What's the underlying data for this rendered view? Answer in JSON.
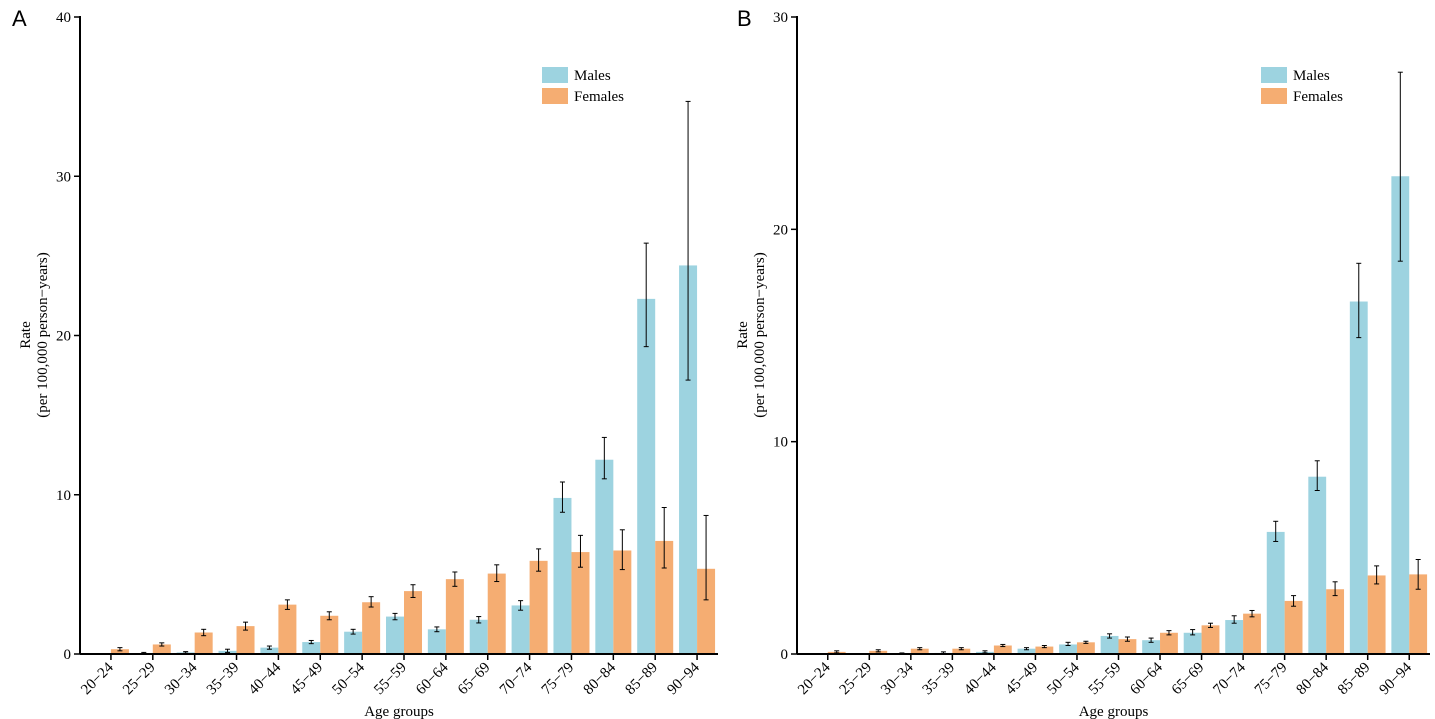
{
  "chart_data": [
    {
      "type": "bar",
      "panel_label": "A",
      "xlabel": "Age groups",
      "ylabel_line1": "Rate",
      "ylabel_line2": "(per 100,000 person−years)",
      "ylim": [
        0,
        40
      ],
      "yticks": [
        0,
        10,
        20,
        30,
        40
      ],
      "categories": [
        "20−24",
        "25−29",
        "30−34",
        "35−39",
        "40−44",
        "45−49",
        "50−54",
        "55−59",
        "60−64",
        "65−69",
        "70−74",
        "75−79",
        "80−84",
        "85−89",
        "90−94"
      ],
      "legend_position": "top-right",
      "series": [
        {
          "name": "Males",
          "color": "#9dd3e0",
          "values": [
            0.0,
            0.05,
            0.1,
            0.2,
            0.4,
            0.75,
            1.4,
            2.35,
            1.55,
            2.15,
            3.05,
            9.8,
            12.2,
            22.3,
            24.4
          ],
          "err_low": [
            0.0,
            0.0,
            0.05,
            0.1,
            0.3,
            0.65,
            1.25,
            2.15,
            1.4,
            1.95,
            2.75,
            8.9,
            11.0,
            19.3,
            17.2
          ],
          "err_high": [
            0.0,
            0.1,
            0.15,
            0.3,
            0.5,
            0.85,
            1.55,
            2.55,
            1.7,
            2.35,
            3.35,
            10.8,
            13.6,
            25.8,
            34.7
          ]
        },
        {
          "name": "Females",
          "color": "#f5ad72",
          "values": [
            0.3,
            0.6,
            1.35,
            1.75,
            3.1,
            2.4,
            3.25,
            3.95,
            4.7,
            5.05,
            5.85,
            6.4,
            6.5,
            7.1,
            5.35
          ],
          "err_low": [
            0.2,
            0.5,
            1.15,
            1.5,
            2.8,
            2.15,
            2.95,
            3.55,
            4.25,
            4.55,
            5.2,
            5.45,
            5.3,
            5.4,
            3.4
          ],
          "err_high": [
            0.4,
            0.7,
            1.55,
            2.0,
            3.4,
            2.65,
            3.6,
            4.35,
            5.15,
            5.6,
            6.6,
            7.45,
            7.8,
            9.2,
            8.7
          ]
        }
      ]
    },
    {
      "type": "bar",
      "panel_label": "B",
      "xlabel": "Age groups",
      "ylabel_line1": "Rate",
      "ylabel_line2": "(per 100,000 person−years)",
      "ylim": [
        0,
        30
      ],
      "yticks": [
        0,
        10,
        20,
        30
      ],
      "categories": [
        "20−24",
        "25−29",
        "30−34",
        "35−39",
        "40−44",
        "45−49",
        "50−54",
        "55−59",
        "60−64",
        "65−69",
        "70−74",
        "75−79",
        "80−84",
        "85−89",
        "90−94"
      ],
      "legend_position": "top-right",
      "series": [
        {
          "name": "Males",
          "color": "#9dd3e0",
          "values": [
            0.0,
            0.0,
            0.02,
            0.05,
            0.1,
            0.25,
            0.45,
            0.85,
            0.65,
            1.0,
            1.6,
            5.75,
            8.35,
            16.6,
            22.5
          ],
          "err_low": [
            0.0,
            0.0,
            0.0,
            0.0,
            0.05,
            0.2,
            0.4,
            0.75,
            0.55,
            0.9,
            1.45,
            5.3,
            7.7,
            14.9,
            18.5
          ],
          "err_high": [
            0.0,
            0.0,
            0.05,
            0.1,
            0.15,
            0.3,
            0.55,
            0.95,
            0.75,
            1.15,
            1.8,
            6.25,
            9.1,
            18.4,
            27.4
          ]
        },
        {
          "name": "Females",
          "color": "#f5ad72",
          "values": [
            0.1,
            0.15,
            0.25,
            0.25,
            0.4,
            0.35,
            0.55,
            0.7,
            1.0,
            1.35,
            1.9,
            2.5,
            3.05,
            3.7,
            3.75
          ],
          "err_low": [
            0.05,
            0.1,
            0.2,
            0.2,
            0.35,
            0.3,
            0.5,
            0.6,
            0.9,
            1.25,
            1.75,
            2.25,
            2.75,
            3.3,
            3.05
          ],
          "err_high": [
            0.15,
            0.2,
            0.3,
            0.3,
            0.45,
            0.4,
            0.6,
            0.8,
            1.1,
            1.45,
            2.05,
            2.75,
            3.4,
            4.15,
            4.45
          ]
        }
      ]
    }
  ]
}
